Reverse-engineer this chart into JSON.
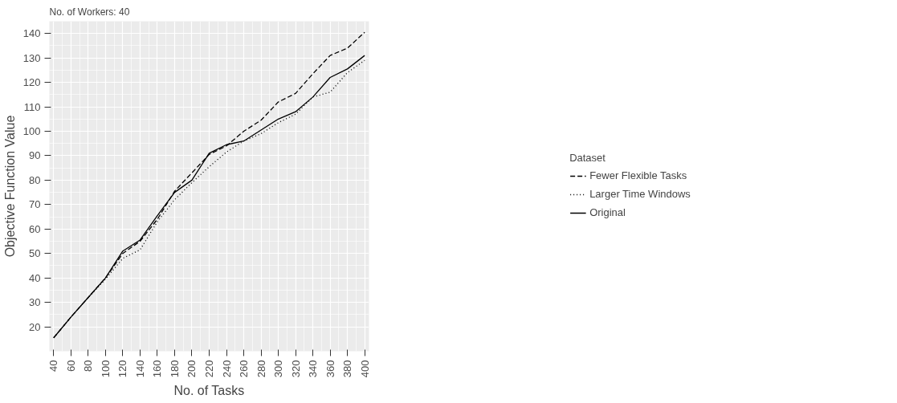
{
  "chart_data": {
    "type": "line",
    "title": "No. of Workers: 40",
    "xlabel": "No. of Tasks",
    "ylabel": "Objective Function Value",
    "legend_title": "Dataset",
    "legend": "right",
    "grid": true,
    "x": [
      40,
      60,
      80,
      100,
      120,
      140,
      160,
      180,
      200,
      220,
      240,
      260,
      280,
      300,
      320,
      340,
      360,
      380,
      400
    ],
    "xlim": [
      35,
      405
    ],
    "xticks": [
      40,
      60,
      80,
      100,
      120,
      140,
      160,
      180,
      200,
      220,
      240,
      260,
      280,
      300,
      320,
      340,
      360,
      380,
      400
    ],
    "ylim": [
      10,
      145
    ],
    "yticks": [
      20,
      30,
      40,
      50,
      60,
      70,
      80,
      90,
      100,
      110,
      120,
      130,
      140
    ],
    "series": [
      {
        "name": "Fewer Flexible Tasks",
        "color": "#000000",
        "line_style": "dashed",
        "values": [
          15.5,
          24,
          32,
          40,
          50,
          55,
          64,
          75.5,
          83,
          90.5,
          94,
          100,
          104.5,
          112,
          115.5,
          123.5,
          131,
          134,
          140.5
        ]
      },
      {
        "name": "Larger Time Windows",
        "color": "#000000",
        "line_style": "dotted",
        "values": [
          15.5,
          24,
          32,
          39.5,
          48,
          51.5,
          63,
          72,
          79,
          85.5,
          91.5,
          96,
          99,
          103.5,
          107,
          114,
          116,
          124,
          129
        ]
      },
      {
        "name": "Original",
        "color": "#000000",
        "line_style": "solid",
        "values": [
          15.5,
          24,
          32,
          40,
          51,
          55.5,
          65.5,
          75,
          80,
          91,
          94.5,
          96,
          100.5,
          105,
          108,
          114,
          122,
          125.5,
          131
        ]
      }
    ]
  }
}
